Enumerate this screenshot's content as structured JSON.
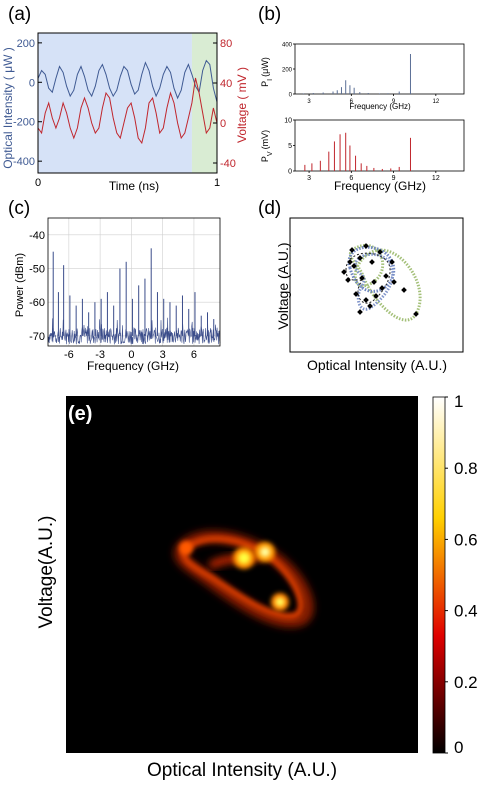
{
  "panels": {
    "a": "(a)",
    "b": "(b)",
    "c": "(c)",
    "d": "(d)",
    "e": "(e)"
  },
  "chart_data": [
    {
      "id": "a",
      "type": "line",
      "xlabel": "Time (ns)",
      "ylabel_left": "Optical Intensity ( μW )",
      "ylabel_right": "Voltage ( mV )",
      "xlim": [
        0,
        1
      ],
      "ylim_left": [
        -460,
        250
      ],
      "ylim_right": [
        -50,
        90
      ],
      "x_ticks": [
        0,
        1
      ],
      "y_ticks_left": [
        200,
        0,
        -200,
        -400
      ],
      "y_ticks_right": [
        80,
        40,
        0,
        -40
      ],
      "shaded_regions": [
        {
          "from": 0,
          "to": 0.86,
          "color": "#d6e2f7"
        },
        {
          "from": 0.86,
          "to": 1.0,
          "color": "#d9ecd3"
        }
      ],
      "series": [
        {
          "axis": "left",
          "color": "#3f5a93",
          "x": [
            0,
            0.02,
            0.04,
            0.06,
            0.08,
            0.1,
            0.12,
            0.14,
            0.16,
            0.18,
            0.2,
            0.22,
            0.24,
            0.26,
            0.28,
            0.3,
            0.32,
            0.34,
            0.36,
            0.38,
            0.4,
            0.42,
            0.44,
            0.46,
            0.48,
            0.5,
            0.52,
            0.54,
            0.56,
            0.58,
            0.6,
            0.62,
            0.64,
            0.66,
            0.68,
            0.7,
            0.72,
            0.74,
            0.76,
            0.78,
            0.8,
            0.82,
            0.84,
            0.86,
            0.88,
            0.9,
            0.92,
            0.94,
            0.96,
            0.98,
            1.0
          ],
          "values": [
            20,
            60,
            40,
            -30,
            -50,
            20,
            80,
            50,
            -20,
            -70,
            -40,
            40,
            80,
            30,
            -40,
            -70,
            -20,
            60,
            90,
            40,
            -30,
            -70,
            -40,
            30,
            80,
            60,
            -10,
            -60,
            -40,
            40,
            100,
            60,
            -20,
            -70,
            -30,
            40,
            80,
            50,
            -30,
            -80,
            -40,
            50,
            90,
            40,
            -20,
            -50,
            60,
            110,
            90,
            -30,
            -100
          ]
        },
        {
          "axis": "right",
          "color": "#c0262d",
          "x": [
            0,
            0.02,
            0.04,
            0.06,
            0.08,
            0.1,
            0.12,
            0.14,
            0.16,
            0.18,
            0.2,
            0.22,
            0.24,
            0.26,
            0.28,
            0.3,
            0.32,
            0.34,
            0.36,
            0.38,
            0.4,
            0.42,
            0.44,
            0.46,
            0.48,
            0.5,
            0.52,
            0.54,
            0.56,
            0.58,
            0.6,
            0.62,
            0.64,
            0.66,
            0.68,
            0.7,
            0.72,
            0.74,
            0.76,
            0.78,
            0.8,
            0.82,
            0.84,
            0.86,
            0.88,
            0.9,
            0.92,
            0.94,
            0.96,
            0.98,
            1.0
          ],
          "values": [
            -5,
            -10,
            10,
            20,
            5,
            -5,
            5,
            20,
            10,
            -5,
            -15,
            -5,
            15,
            25,
            15,
            0,
            -10,
            -5,
            15,
            30,
            25,
            5,
            -10,
            -15,
            0,
            15,
            20,
            5,
            -15,
            -20,
            -5,
            20,
            25,
            10,
            -10,
            -5,
            15,
            30,
            20,
            0,
            -15,
            -10,
            5,
            20,
            45,
            30,
            10,
            -10,
            -5,
            15,
            0
          ]
        }
      ]
    },
    {
      "id": "b_top",
      "type": "bar",
      "xlabel": "Frequency (GHz)",
      "ylabel": "P_I (μW)",
      "ylabel_main": "P",
      "ylabel_sub": "I",
      "ylabel_unit": "(μW)",
      "xlim": [
        2,
        14
      ],
      "ylim": [
        0,
        400
      ],
      "x_ticks": [
        3,
        6,
        9,
        12
      ],
      "y_ticks": [
        0,
        200,
        400
      ],
      "color": "#5b6f96",
      "x": [
        2.6,
        3.3,
        4.0,
        4.7,
        5.0,
        5.3,
        5.6,
        5.9,
        6.2,
        6.6,
        7.2,
        8.0,
        8.6,
        9.4,
        10.2
      ],
      "values": [
        5,
        8,
        12,
        20,
        30,
        55,
        110,
        70,
        50,
        15,
        8,
        5,
        6,
        20,
        320
      ]
    },
    {
      "id": "b_bottom",
      "type": "bar",
      "xlabel": "Frequency (GHz)",
      "ylabel": "P_V (mV)",
      "ylabel_main": "P",
      "ylabel_sub": "V",
      "ylabel_unit": "(mV)",
      "xlim": [
        2,
        14
      ],
      "ylim": [
        0,
        10
      ],
      "x_ticks": [
        3,
        6,
        9,
        12
      ],
      "y_ticks": [
        0,
        5,
        10
      ],
      "color": "#c0262d",
      "x": [
        2.7,
        3.2,
        3.8,
        4.4,
        4.8,
        5.2,
        5.6,
        5.9,
        6.3,
        6.7,
        7.1,
        7.6,
        8.2,
        8.8,
        9.4,
        10.2
      ],
      "values": [
        1.2,
        1.5,
        2.0,
        3.8,
        5.8,
        7.2,
        7.5,
        5.0,
        3.0,
        1.5,
        1.0,
        0.6,
        0.4,
        0.5,
        0.8,
        6.5
      ]
    },
    {
      "id": "c",
      "type": "line",
      "xlabel": "Frequency (GHz)",
      "ylabel": "Power (dBm)",
      "xlim": [
        -8,
        8.5
      ],
      "ylim": [
        -73,
        -35
      ],
      "x_ticks": [
        -6,
        -3,
        0,
        3,
        6
      ],
      "y_ticks": [
        -40,
        -50,
        -60,
        -70
      ],
      "grid": true,
      "color": "#3a4c8a",
      "peaks": {
        "x": [
          -7.5,
          -7.0,
          -6.5,
          -5.9,
          -5.3,
          -4.7,
          -4.1,
          -3.5,
          -2.9,
          -2.3,
          -1.7,
          -1.1,
          -0.5,
          0.1,
          0.7,
          1.3,
          1.9,
          2.5,
          3.1,
          3.7,
          4.3,
          4.9,
          5.5,
          6.1,
          6.7,
          7.3,
          7.9
        ],
        "values": [
          -45,
          -57,
          -49,
          -58,
          -61,
          -59,
          -63,
          -60,
          -59,
          -57,
          -61,
          -50,
          -48,
          -59,
          -55,
          -53,
          -44,
          -57,
          -59,
          -60,
          -61,
          -58,
          -62,
          -57,
          -64,
          -63,
          -65
        ]
      },
      "noise_floor": -70
    },
    {
      "id": "d",
      "type": "scatter",
      "xlabel": "Optical Intensity (A.U.)",
      "ylabel": "Voltage (A.U.)"
    },
    {
      "id": "e",
      "type": "heatmap",
      "xlabel": "Optical Intensity (A.U.)",
      "ylabel": "Voltage(A.U.)",
      "colorbar_ticks": [
        1,
        0.8,
        0.6,
        0.4,
        0.2,
        0
      ],
      "colorbar_range": [
        0,
        1
      ],
      "colormap": "hot"
    }
  ]
}
